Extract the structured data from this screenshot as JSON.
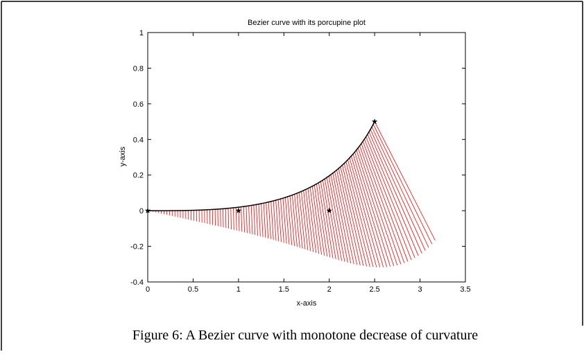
{
  "caption": "Figure 6: A Bezier curve with monotone decrease of curvature",
  "chart_data": {
    "type": "porcupine",
    "title": "Bezier curve with its porcupine plot",
    "xlabel": "x-axis",
    "ylabel": "y-axis",
    "control_points": {
      "x": [
        0,
        1,
        2,
        2.5
      ],
      "y": [
        0,
        0,
        0,
        0.5
      ]
    },
    "curve_color": "#000000",
    "porcupine_color": "#ff0000",
    "xlim": [
      0,
      3.5
    ],
    "xticks": [
      0,
      0.5,
      1,
      1.5,
      2,
      2.5,
      3,
      3.5
    ],
    "ylim": [
      -0.4,
      1
    ],
    "yticks": [
      -0.4,
      -0.2,
      0,
      0.2,
      0.4,
      0.6,
      0.8,
      1
    ]
  }
}
